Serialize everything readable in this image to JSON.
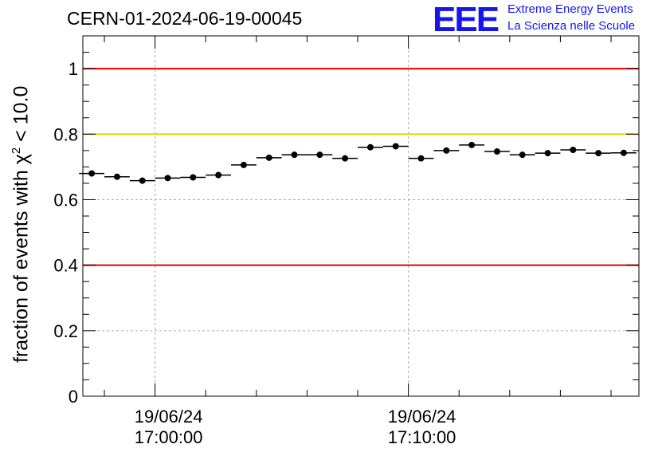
{
  "page_title": "CERN-01-2024-06-19-00045",
  "logo": {
    "mark": "EEE",
    "line1": "Extreme Energy Events",
    "line2": "La Scienza nelle Scuole",
    "color": "#1515ee"
  },
  "chart_data": {
    "type": "scatter",
    "title": "CERN-01-2024-06-19-00045",
    "ylabel_prefix": "fraction of events with ",
    "ylabel_symbol": "χ",
    "ylabel_exp": "2",
    "ylabel_suffix": " < 10.0",
    "xlabel": "",
    "ylim": [
      0,
      1.1
    ],
    "yticks": [
      "0",
      "0.2",
      "0.4",
      "0.6",
      "0.8",
      "1"
    ],
    "ytick_values": [
      0,
      0.2,
      0.4,
      0.6,
      0.8,
      1.0
    ],
    "xlim_minutes": [
      -2.85,
      19.1
    ],
    "xticks": [
      {
        "minute": 0,
        "date": "19/06/24",
        "time": "17:00:00"
      },
      {
        "minute": 10,
        "date": "19/06/24",
        "time": "17:10:00"
      }
    ],
    "reference_lines": [
      {
        "y": 1.0,
        "color": "#ee0000"
      },
      {
        "y": 0.8,
        "color": "#ffcc00"
      },
      {
        "y": 0.4,
        "color": "#ee0000"
      }
    ],
    "grid": true,
    "point_color": "#000000",
    "bin_width_minutes": 1,
    "x_minutes": [
      -2.5,
      -1.5,
      -0.5,
      0.5,
      1.5,
      2.5,
      3.5,
      4.5,
      5.5,
      6.5,
      7.5,
      8.5,
      9.5,
      10.5,
      11.5,
      12.5,
      13.5,
      14.5,
      15.5,
      16.5,
      17.5,
      18.5
    ],
    "values": [
      0.68,
      0.67,
      0.658,
      0.666,
      0.668,
      0.675,
      0.706,
      0.728,
      0.737,
      0.737,
      0.726,
      0.76,
      0.763,
      0.726,
      0.75,
      0.767,
      0.747,
      0.737,
      0.742,
      0.752,
      0.742,
      0.743
    ]
  }
}
